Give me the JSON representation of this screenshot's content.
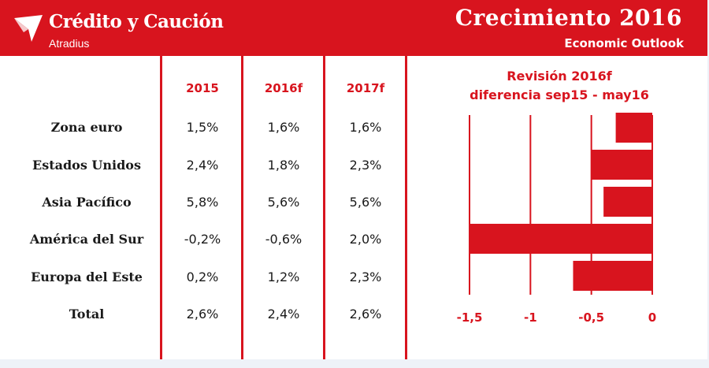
{
  "header": {
    "brand": "Crédito y Caución",
    "brand_sub": "Atradius",
    "title": "Crecimiento 2016",
    "subtitle": "Economic Outlook"
  },
  "table": {
    "columns": [
      "2015",
      "2016f",
      "2017f"
    ],
    "rows": [
      {
        "label": "Zona euro",
        "values": [
          "1,5%",
          "1,6%",
          "1,6%"
        ]
      },
      {
        "label": "Estados Unidos",
        "values": [
          "2,4%",
          "1,8%",
          "2,3%"
        ]
      },
      {
        "label": "Asia Pacífico",
        "values": [
          "5,8%",
          "5,6%",
          "5,6%"
        ]
      },
      {
        "label": "América del Sur",
        "values": [
          "-0,2%",
          "-0,6%",
          "2,0%"
        ]
      },
      {
        "label": "Europa del Este",
        "values": [
          "0,2%",
          "1,2%",
          "2,3%"
        ]
      },
      {
        "label": "Total",
        "values": [
          "2,6%",
          "2,4%",
          "2,6%"
        ]
      }
    ]
  },
  "chart_data": {
    "type": "bar",
    "orientation": "horizontal",
    "title_line1": "Revisión 2016f",
    "title_line2": "diferencia sep15 - may16",
    "categories": [
      "Zona euro",
      "Estados Unidos",
      "Asia Pacífico",
      "América del Sur",
      "Europa del Este"
    ],
    "values": [
      -0.3,
      -0.5,
      -0.4,
      -1.5,
      -0.65
    ],
    "xlim": [
      -1.5,
      0
    ],
    "xticks": [
      -1.5,
      -1,
      -0.5,
      0
    ],
    "xtick_labels": [
      "-1,5",
      "-1",
      "-0,5",
      "0"
    ],
    "grid": true,
    "color": "#d8141e"
  },
  "colors": {
    "accent": "#d8141e",
    "background": "#ffffff",
    "frame": "#eef2f8"
  }
}
